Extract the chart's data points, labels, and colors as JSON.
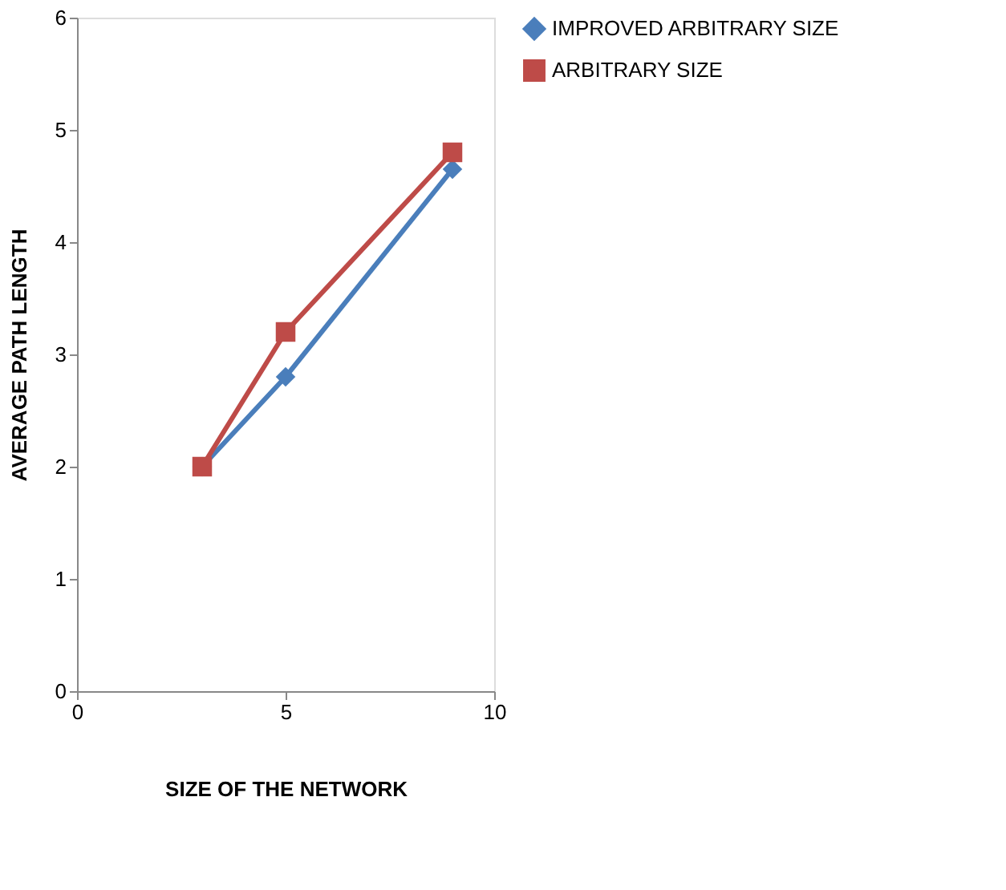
{
  "chart_data": {
    "type": "line",
    "xlabel": "SIZE OF THE NETWORK",
    "ylabel": "AVERAGE PATH LENGTH",
    "x": [
      3,
      5,
      9
    ],
    "series": [
      {
        "name": "IMPROVED ARBITRARY SIZE",
        "color": "#4a7ebb",
        "values": [
          2,
          2.8,
          4.65
        ],
        "marker": "diamond"
      },
      {
        "name": "ARBITRARY SIZE",
        "color": "#be4b48",
        "values": [
          2,
          3.2,
          4.8
        ],
        "marker": "square"
      }
    ],
    "xlim": [
      0,
      10
    ],
    "xticks": [
      0,
      5,
      10
    ],
    "ylim": [
      0,
      6
    ],
    "yticks": [
      0,
      1,
      2,
      3,
      4,
      5,
      6
    ],
    "grid": false,
    "legend": "right",
    "line_style": "solid"
  }
}
